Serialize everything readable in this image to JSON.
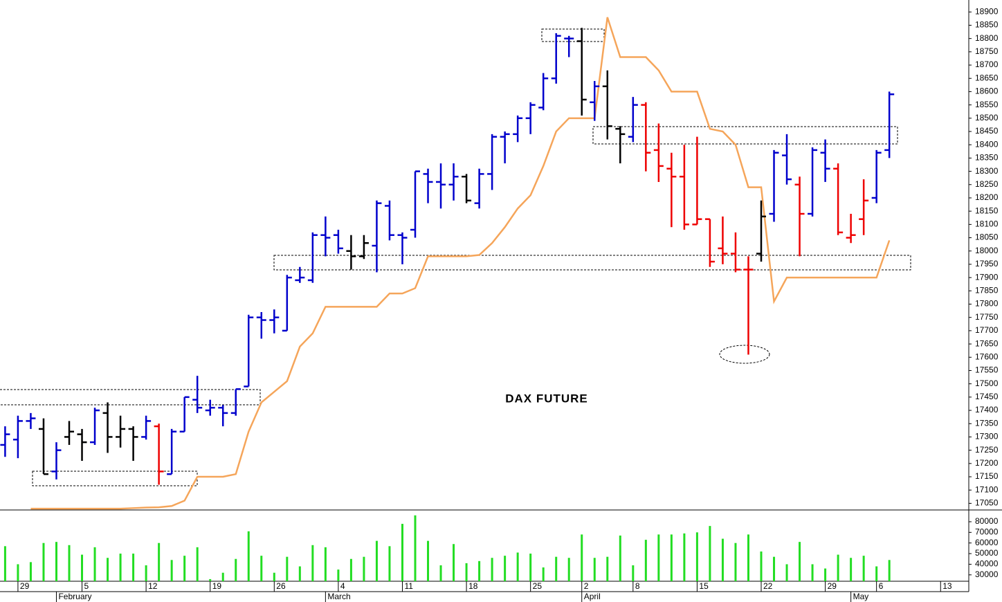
{
  "chart_data": [
    {
      "type": "ohlc",
      "title": "DAX FUTURE",
      "xlim": [
        -0.4,
        75.2
      ],
      "ylim": [
        17025,
        18945
      ],
      "yticks": [
        17050,
        17100,
        17150,
        17200,
        17250,
        17300,
        17350,
        17400,
        17450,
        17500,
        17550,
        17600,
        17650,
        17700,
        17750,
        17800,
        17850,
        17900,
        17950,
        18000,
        18050,
        18100,
        18150,
        18200,
        18250,
        18300,
        18350,
        18400,
        18450,
        18500,
        18550,
        18600,
        18650,
        18700,
        18750,
        18800,
        18850,
        18900
      ],
      "xticks": [
        {
          "value": 1,
          "label": "29"
        },
        {
          "value": 6,
          "label": "5"
        },
        {
          "value": 11,
          "label": "12"
        },
        {
          "value": 16,
          "label": "19"
        },
        {
          "value": 21,
          "label": "26"
        },
        {
          "value": 26,
          "label": "4"
        },
        {
          "value": 31,
          "label": "11"
        },
        {
          "value": 36,
          "label": "18"
        },
        {
          "value": 41,
          "label": "25"
        },
        {
          "value": 45,
          "label": "2"
        },
        {
          "value": 49,
          "label": "8"
        },
        {
          "value": 54,
          "label": "15"
        },
        {
          "value": 59,
          "label": "22"
        },
        {
          "value": 64,
          "label": "29"
        },
        {
          "value": 68,
          "label": "6"
        },
        {
          "value": 73,
          "label": "13"
        }
      ],
      "month_ticks": [
        {
          "value": 4,
          "label": "February"
        },
        {
          "value": 25,
          "label": "March"
        },
        {
          "value": 45,
          "label": "April"
        },
        {
          "value": 66,
          "label": "May"
        }
      ],
      "open": [
        17270,
        17290,
        17360,
        17330,
        17170,
        17300,
        17310,
        17280,
        17390,
        17300,
        17330,
        17300,
        17340,
        17160,
        17320,
        17440,
        17400,
        17410,
        17390,
        17490,
        17750,
        17740,
        17700,
        17890,
        17890,
        18060,
        18060,
        18000,
        17980,
        18020,
        18170,
        18060,
        18080,
        18290,
        18260,
        18250,
        18280,
        18180,
        18290,
        18430,
        18440,
        18500,
        18540,
        18650,
        18800,
        18790,
        18560,
        18620,
        18460,
        18430,
        18550,
        18380,
        18310,
        18280,
        18100,
        18120,
        18010,
        17990,
        17930,
        17990,
        18140,
        18360,
        18250,
        18140,
        18370,
        18310,
        18050,
        18120,
        18200,
        18380
      ],
      "high": [
        17340,
        17380,
        17390,
        17370,
        17280,
        17360,
        17330,
        17410,
        17430,
        17380,
        17340,
        17380,
        17350,
        17330,
        17450,
        17530,
        17440,
        17420,
        17480,
        17760,
        17770,
        17780,
        17910,
        17940,
        18070,
        18130,
        18080,
        18060,
        18060,
        18190,
        18190,
        18070,
        18300,
        18310,
        18330,
        18330,
        18290,
        18310,
        18440,
        18450,
        18510,
        18560,
        18670,
        18820,
        18810,
        18840,
        18640,
        18680,
        18470,
        18580,
        18560,
        18480,
        18370,
        18400,
        18430,
        18120,
        18130,
        18070,
        17980,
        18190,
        18380,
        18440,
        18280,
        18390,
        18420,
        18330,
        18140,
        18270,
        18380,
        18600
      ],
      "low": [
        17225,
        17220,
        17330,
        17160,
        17140,
        17270,
        17210,
        17270,
        17240,
        17260,
        17210,
        17290,
        17120,
        17160,
        17320,
        17390,
        17380,
        17340,
        17380,
        17490,
        17670,
        17690,
        17700,
        17880,
        17880,
        17980,
        17990,
        17930,
        17970,
        17920,
        18040,
        17950,
        18050,
        18180,
        18160,
        18190,
        18180,
        18160,
        18230,
        18330,
        18410,
        18440,
        18530,
        18630,
        18730,
        18510,
        18490,
        18420,
        18330,
        18410,
        18300,
        18260,
        18090,
        18080,
        18100,
        17940,
        17950,
        17920,
        17610,
        17960,
        18110,
        18250,
        17980,
        18130,
        18260,
        18060,
        18030,
        18060,
        18180,
        18350
      ],
      "close": [
        17310,
        17360,
        17370,
        17160,
        17250,
        17320,
        17280,
        17400,
        17300,
        17330,
        17300,
        17360,
        17170,
        17320,
        17450,
        17410,
        17410,
        17390,
        17480,
        17750,
        17740,
        17750,
        17900,
        17900,
        18060,
        18050,
        18010,
        17980,
        18030,
        18180,
        18060,
        18050,
        18300,
        18260,
        18250,
        18280,
        18190,
        18290,
        18430,
        18440,
        18500,
        18550,
        18650,
        18810,
        18800,
        18570,
        18620,
        18470,
        18440,
        18550,
        18370,
        18320,
        18280,
        18100,
        18120,
        17960,
        17990,
        17930,
        17930,
        18130,
        18370,
        18270,
        18140,
        18380,
        18310,
        18070,
        18060,
        18190,
        18370,
        18590
      ],
      "colors": [
        "#0000cc",
        "#0000cc",
        "#0000cc",
        "#000000",
        "#0000cc",
        "#000000",
        "#000000",
        "#0000cc",
        "#000000",
        "#000000",
        "#000000",
        "#0000cc",
        "#ee0000",
        "#0000cc",
        "#0000cc",
        "#0000cc",
        "#0000cc",
        "#0000cc",
        "#0000cc",
        "#0000cc",
        "#0000cc",
        "#0000cc",
        "#0000cc",
        "#0000cc",
        "#0000cc",
        "#0000cc",
        "#0000cc",
        "#000000",
        "#000000",
        "#0000cc",
        "#0000cc",
        "#0000cc",
        "#0000cc",
        "#0000cc",
        "#0000cc",
        "#0000cc",
        "#000000",
        "#0000cc",
        "#0000cc",
        "#0000cc",
        "#0000cc",
        "#0000cc",
        "#0000cc",
        "#0000cc",
        "#0000cc",
        "#000000",
        "#0000cc",
        "#000000",
        "#000000",
        "#0000cc",
        "#ee0000",
        "#ee0000",
        "#ee0000",
        "#ee0000",
        "#ee0000",
        "#ee0000",
        "#ee0000",
        "#ee0000",
        "#ee0000",
        "#000000",
        "#0000cc",
        "#0000cc",
        "#ee0000",
        "#0000cc",
        "#0000cc",
        "#ee0000",
        "#ee0000",
        "#ee0000",
        "#0000cc",
        "#0000cc"
      ],
      "line": {
        "color": "#f5a55a",
        "values": [
          null,
          null,
          17030,
          17030,
          17030,
          17030,
          17030,
          17030,
          17030,
          17030,
          17032,
          17034,
          17035,
          17040,
          17060,
          17150,
          17150,
          17150,
          17160,
          17320,
          17430,
          17470,
          17510,
          17640,
          17690,
          17790,
          17790,
          17790,
          17790,
          17790,
          17840,
          17840,
          17860,
          17980,
          17980,
          17980,
          17980,
          17985,
          18030,
          18090,
          18160,
          18210,
          18320,
          18450,
          18500,
          18500,
          18500,
          18880,
          18730,
          18730,
          18730,
          18680,
          18600,
          18600,
          18600,
          18460,
          18450,
          18400,
          18240,
          18240,
          17810,
          17900,
          17900,
          17900,
          17900,
          17900,
          17900,
          17900,
          17900,
          18040
        ]
      }
    },
    {
      "type": "bar",
      "color": "#22dd22",
      "xlim": [
        -0.4,
        75.2
      ],
      "ylim": [
        24000,
        88000
      ],
      "yticks": [
        30000,
        40000,
        50000,
        60000,
        70000,
        80000
      ],
      "values": [
        57000,
        40000,
        42000,
        60000,
        61000,
        58000,
        49000,
        56000,
        46000,
        50000,
        50000,
        39000,
        60000,
        44000,
        48000,
        56000,
        26000,
        32000,
        45000,
        71000,
        48000,
        32000,
        47000,
        38000,
        58000,
        56000,
        35000,
        45000,
        47000,
        62000,
        57000,
        78000,
        86000,
        62000,
        39000,
        59000,
        41000,
        43000,
        46000,
        48000,
        51000,
        50000,
        37000,
        47000,
        46000,
        68000,
        46000,
        47000,
        67000,
        39000,
        63000,
        68000,
        68000,
        69000,
        70000,
        76000,
        64000,
        60000,
        68000,
        52000,
        47000,
        40000,
        61000,
        40000,
        36000,
        49000,
        46000,
        48000,
        38000,
        44000
      ]
    }
  ]
}
